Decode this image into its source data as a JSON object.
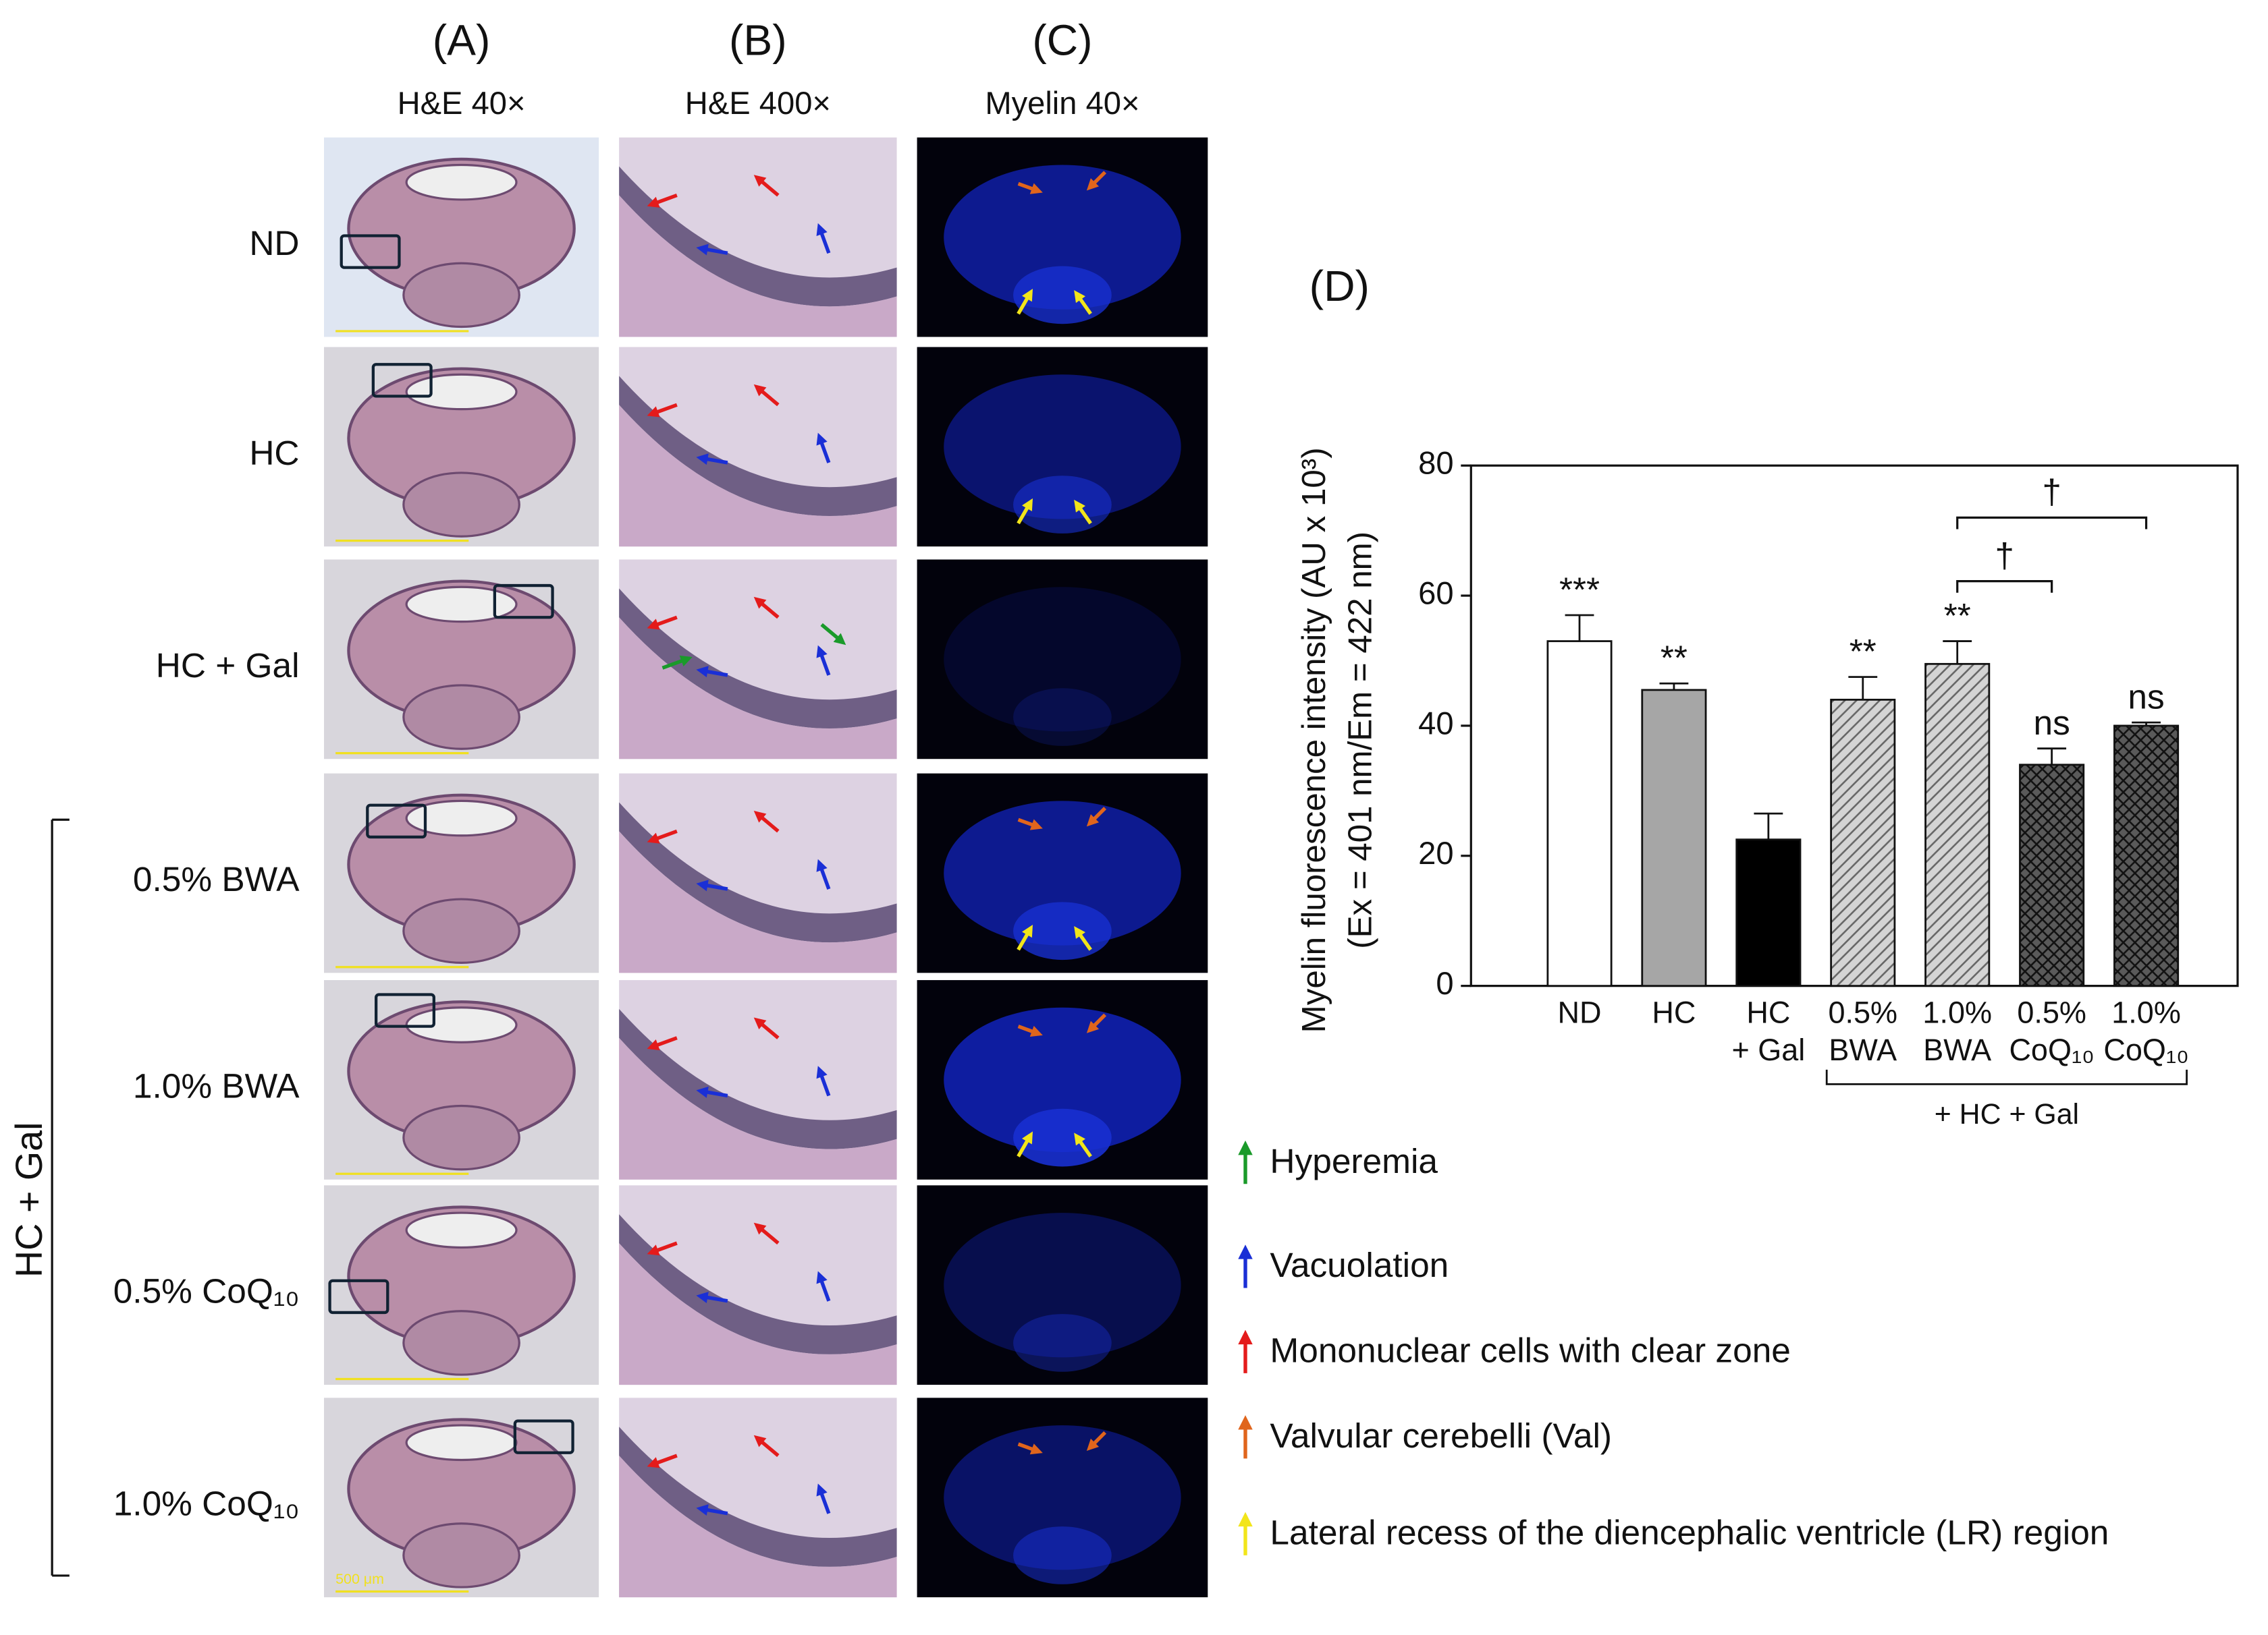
{
  "panels": {
    "columns": [
      {
        "letter": "(A)",
        "label": "H&E 40×"
      },
      {
        "letter": "(B)",
        "label": "H&E 400×"
      },
      {
        "letter": "(C)",
        "label": "Myelin 40×"
      }
    ],
    "rows": [
      "ND",
      "HC",
      "HC + Gal",
      "0.5% BWA",
      "1.0% BWA",
      "0.5% CoQ₁₀",
      "1.0% CoQ₁₀"
    ],
    "group_label": "HC + Gal",
    "scale_bar": "500 μm"
  },
  "legend": [
    {
      "label": "Hyperemia",
      "color": "#1a9a2a"
    },
    {
      "label": "Vacuolation",
      "color": "#1a2fd6"
    },
    {
      "label": "Mononuclear cells with clear zone",
      "color": "#e41b1b"
    },
    {
      "label": "Valvular cerebelli (Val)",
      "color": "#e0651c"
    },
    {
      "label": "Lateral recess of the diencephalic ventricle (LR) region",
      "color": "#f2e51a"
    }
  ],
  "chart_data": {
    "type": "bar",
    "panel_label": "(D)",
    "y_label": [
      "Myelin fluorescence intensity (AU x 10³)",
      "(Ex = 401 nm/Em = 422 nm)"
    ],
    "categories": [
      "ND",
      "HC",
      "HC\n+ Gal",
      "0.5%\nBWA",
      "1.0%\nBWA",
      "0.5%\nCoQ₁₀",
      "1.0%\nCoQ₁₀"
    ],
    "values": [
      53,
      45.5,
      22.5,
      44,
      49.5,
      34,
      40
    ],
    "errors": [
      4,
      1,
      4,
      3.5,
      3.5,
      2.5,
      0.5
    ],
    "colors": [
      "#ffffff",
      "#a6a6a6",
      "#000000",
      "#d4d4d4",
      "#d4d4d4",
      "#5a5a5a",
      "#5a5a5a"
    ],
    "hatch": [
      null,
      null,
      null,
      "diagonal",
      "diagonal",
      "cross",
      "cross"
    ],
    "significance": [
      "***",
      "**",
      null,
      "**",
      "**",
      "ns",
      "ns"
    ],
    "comparisons": [
      {
        "from": 4,
        "to": 5,
        "label": "†"
      },
      {
        "from": 4,
        "to": 6,
        "label": "†"
      }
    ],
    "group": {
      "label": "+ HC + Gal",
      "from": 3,
      "to": 6
    },
    "ylim": [
      0,
      80
    ],
    "yticks": [
      0,
      20,
      40,
      60,
      80
    ]
  }
}
